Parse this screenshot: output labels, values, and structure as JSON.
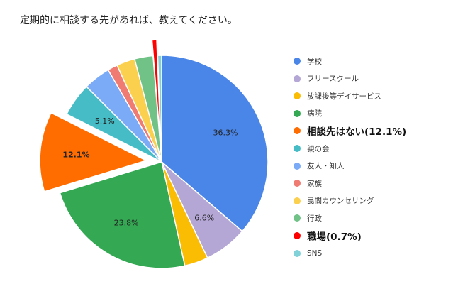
{
  "chart_data": {
    "type": "pie",
    "title": "定期的に相談する先があれば、教えてください。",
    "slices": [
      {
        "label": "学校",
        "value": 36.3,
        "color": "#4a86e8",
        "data_label": "36.3%",
        "emphasized": false,
        "exploded": false
      },
      {
        "label": "フリースクール",
        "value": 6.6,
        "color": "#b4a7d6",
        "data_label": "6.6%",
        "emphasized": false,
        "exploded": false
      },
      {
        "label": "放課後等デイサービス",
        "value": 3.6,
        "color": "#fbbc04",
        "data_label": "",
        "emphasized": false,
        "exploded": false
      },
      {
        "label": "病院",
        "value": 23.8,
        "color": "#34a853",
        "data_label": "23.8%",
        "emphasized": false,
        "exploded": false
      },
      {
        "label": "相談先はない(12.1%)",
        "value": 12.1,
        "color": "#ff6d01",
        "data_label": "12.1%",
        "emphasized": true,
        "exploded": true
      },
      {
        "label": "親の会",
        "value": 5.1,
        "color": "#46bdc6",
        "data_label": "5.1%",
        "emphasized": false,
        "exploded": false
      },
      {
        "label": "友人・知人",
        "value": 4.1,
        "color": "#7baaf7",
        "data_label": "",
        "emphasized": false,
        "exploded": false
      },
      {
        "label": "家族",
        "value": 1.5,
        "color": "#f07b72",
        "data_label": "",
        "emphasized": false,
        "exploded": false
      },
      {
        "label": "民間カウンセリング",
        "value": 2.8,
        "color": "#fcd04f",
        "data_label": "",
        "emphasized": false,
        "exploded": false
      },
      {
        "label": "行政",
        "value": 2.8,
        "color": "#71c287",
        "data_label": "",
        "emphasized": false,
        "exploded": false
      },
      {
        "label": "職場(0.7%)",
        "value": 0.7,
        "color": "#ff0000",
        "data_label": "",
        "emphasized": true,
        "exploded": true
      },
      {
        "label": "SNS",
        "value": 0.6,
        "color": "#80d1d8",
        "data_label": "",
        "emphasized": false,
        "exploded": false
      }
    ],
    "legend_position": "right"
  }
}
